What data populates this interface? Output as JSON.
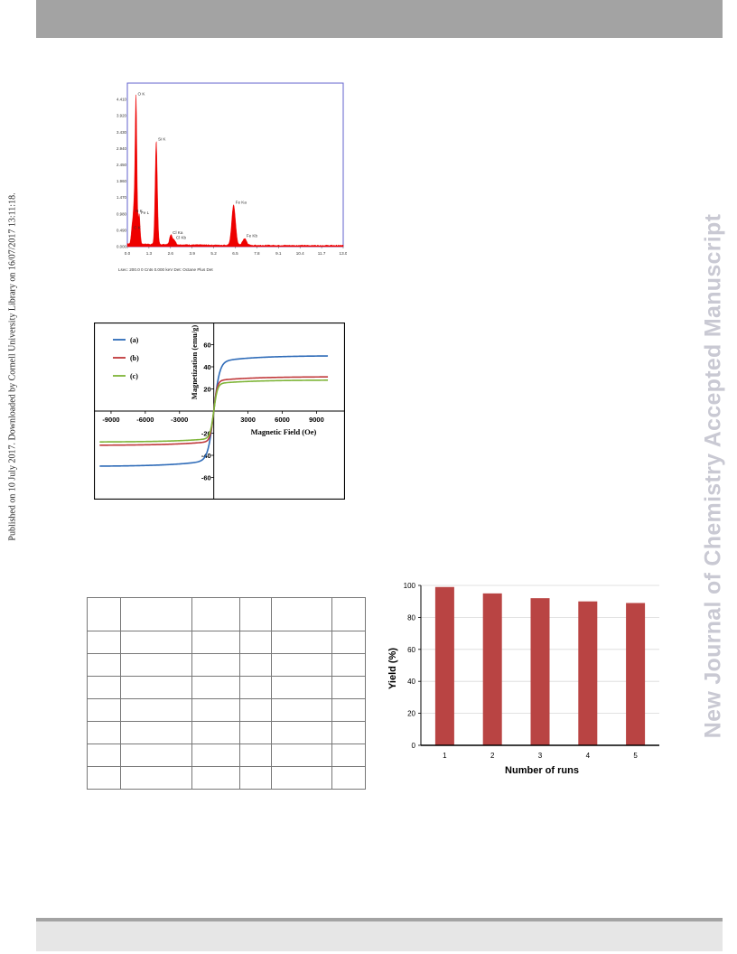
{
  "sidebar": {
    "published_text": "Published on 10 July 2017. Downloaded by Cornell University Library on 16/07/2017 13:11:18."
  },
  "watermark": {
    "text": "New Journal of Chemistry Accepted Manuscript"
  },
  "chart_data": [
    {
      "type": "line",
      "title": "",
      "xlabel": "",
      "ylabel": "",
      "x_ticks": [
        "0.0",
        "1.3",
        "2.6",
        "3.9",
        "5.2",
        "6.5",
        "7.8",
        "9.1",
        "10.4",
        "11.7",
        "13.0"
      ],
      "xlim": [
        0,
        13.0
      ],
      "y_ticks": [
        "0.000",
        "0.490",
        "0.980",
        "1.470",
        "1.960",
        "2.450",
        "2.940",
        "3.430",
        "3.920",
        "4.410"
      ],
      "ylim": [
        0,
        4.9
      ],
      "peaks": [
        {
          "label": "C K",
          "x": 0.28,
          "y": 0.45
        },
        {
          "label": "O K",
          "x": 0.52,
          "y": 4.45
        },
        {
          "label": "N K",
          "x": 0.39,
          "y": 0.95
        },
        {
          "label": "Fe L",
          "x": 0.71,
          "y": 0.9
        },
        {
          "label": "Si K",
          "x": 1.74,
          "y": 3.1
        },
        {
          "label": "Cl Ka",
          "x": 2.62,
          "y": 0.3
        },
        {
          "label": "Cl Kb",
          "x": 2.82,
          "y": 0.15
        },
        {
          "label": "Fe Ka",
          "x": 6.4,
          "y": 1.2
        },
        {
          "label": "Fe Kb",
          "x": 7.06,
          "y": 0.2
        }
      ],
      "footer": "Lsec: 200.0 0 Cnts 0.000 keV Det: Octane Plus Det",
      "line_color": "#ee0000",
      "frame_color": "#5555cc"
    },
    {
      "type": "line",
      "title": "",
      "xlabel": "Magnetic Field (Oe)",
      "ylabel": "Magnetization (emu/g)",
      "xlim": [
        -10500,
        11500
      ],
      "ylim": [
        -80,
        80
      ],
      "x_ticks": [
        -9000,
        -6000,
        -3000,
        3000,
        6000,
        9000
      ],
      "y_ticks": [
        -60,
        -40,
        -20,
        20,
        40,
        60
      ],
      "series": [
        {
          "name": "(a)",
          "color": "#2e6bb8",
          "ms": 50,
          "h0": 500,
          "x": [
            -10000,
            -5000,
            -3000,
            -2000,
            -1000,
            -500,
            -200,
            0,
            200,
            500,
            1000,
            2000,
            3000,
            5000,
            10000
          ],
          "y": [
            -50,
            -48,
            -46,
            -44.5,
            -41,
            -33,
            -20,
            0,
            20,
            33,
            41,
            44.5,
            46,
            48,
            50
          ]
        },
        {
          "name": "(b)",
          "color": "#c0393b",
          "ms": 31,
          "h0": 300,
          "x": [
            -10000,
            -5000,
            -3000,
            -2000,
            -1000,
            -500,
            -200,
            0,
            200,
            500,
            1000,
            2000,
            3000,
            5000,
            10000
          ],
          "y": [
            -31,
            -30,
            -29,
            -28,
            -25,
            -20,
            -11,
            0,
            11,
            20,
            25,
            28,
            29,
            30,
            31
          ]
        },
        {
          "name": "(c)",
          "color": "#7fb539",
          "ms": 28,
          "h0": 320,
          "x": [
            -10000,
            -5000,
            -3000,
            -2000,
            -1000,
            -500,
            -200,
            0,
            200,
            500,
            1000,
            2000,
            3000,
            5000,
            10000
          ],
          "y": [
            -28,
            -27,
            -26,
            -25,
            -22,
            -17,
            -9,
            0,
            9,
            17,
            22,
            25,
            26,
            27,
            28
          ]
        }
      ],
      "legend_position": "top-left"
    },
    {
      "type": "bar",
      "title": "",
      "xlabel": "Number of runs",
      "ylabel": "Yield (%)",
      "categories": [
        "1",
        "2",
        "3",
        "4",
        "5"
      ],
      "values": [
        99,
        95,
        92,
        90,
        89
      ],
      "ylim": [
        0,
        100
      ],
      "y_ticks": [
        0,
        20,
        40,
        60,
        80,
        100
      ],
      "bar_color": "#b94443",
      "grid": true
    }
  ]
}
